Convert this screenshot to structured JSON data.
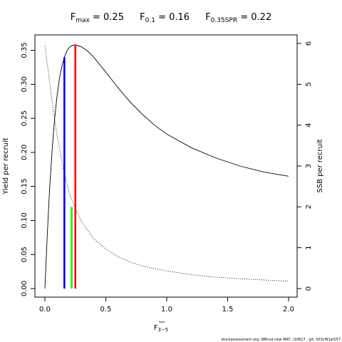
{
  "chart_data": {
    "type": "line",
    "title_parts": [
      {
        "main": "F",
        "sub": "max",
        "rest": " = 0.25"
      },
      {
        "main": "F",
        "sub": "0.1",
        "rest": " = 0.16"
      },
      {
        "main": "F",
        "sub": "0.35SPR",
        "rest": " = 0.22"
      }
    ],
    "xlabel": {
      "main": "F",
      "sub": "3−5"
    },
    "ylabel": "Yield per recruit",
    "y2label": "SSB per recruit",
    "xlim": [
      0,
      2
    ],
    "ylim": [
      0,
      0.36
    ],
    "y2lim": [
      0,
      6
    ],
    "x_ticks": [
      "0.0",
      "0.5",
      "1.0",
      "1.5",
      "2.0"
    ],
    "y_ticks": [
      "0.00",
      "0.05",
      "0.10",
      "0.15",
      "0.20",
      "0.25",
      "0.30",
      "0.35"
    ],
    "y2_ticks": [
      "0",
      "1",
      "2",
      "3",
      "4",
      "5",
      "6"
    ],
    "grid": false,
    "series": [
      {
        "style": "solid",
        "axis": "left",
        "x": [
          0,
          0.02,
          0.04,
          0.06,
          0.08,
          0.1,
          0.12,
          0.14,
          0.16,
          0.18,
          0.2,
          0.22,
          0.25,
          0.3,
          0.35,
          0.4,
          0.5,
          0.6,
          0.7,
          0.8,
          0.9,
          1.0,
          1.2,
          1.4,
          1.6,
          1.8,
          2.0
        ],
        "y": [
          0,
          0.08,
          0.15,
          0.205,
          0.25,
          0.283,
          0.309,
          0.327,
          0.34,
          0.349,
          0.354,
          0.357,
          0.358,
          0.355,
          0.349,
          0.34,
          0.318,
          0.295,
          0.274,
          0.256,
          0.24,
          0.227,
          0.207,
          0.192,
          0.18,
          0.171,
          0.165
        ]
      },
      {
        "style": "dotted",
        "axis": "right",
        "x": [
          0,
          0.02,
          0.05,
          0.08,
          0.1,
          0.15,
          0.2,
          0.25,
          0.3,
          0.4,
          0.5,
          0.6,
          0.7,
          0.8,
          1.0,
          1.2,
          1.4,
          1.6,
          1.8,
          2.0
        ],
        "y": [
          5.95,
          5.5,
          4.8,
          4.15,
          3.75,
          2.95,
          2.35,
          1.95,
          1.65,
          1.22,
          0.97,
          0.78,
          0.65,
          0.55,
          0.43,
          0.34,
          0.28,
          0.24,
          0.21,
          0.18
        ]
      }
    ],
    "reference_lines": [
      {
        "x": 0.25,
        "y": 0.358,
        "color": "#ff0000"
      },
      {
        "x": 0.16,
        "y": 0.34,
        "color": "#0000ff"
      },
      {
        "x": 0.22,
        "y": 0.12,
        "color": "#00ff00"
      }
    ]
  },
  "footer": "stockassessment.org, WBcod new MAT, r10627 , git: 503cf91af157"
}
